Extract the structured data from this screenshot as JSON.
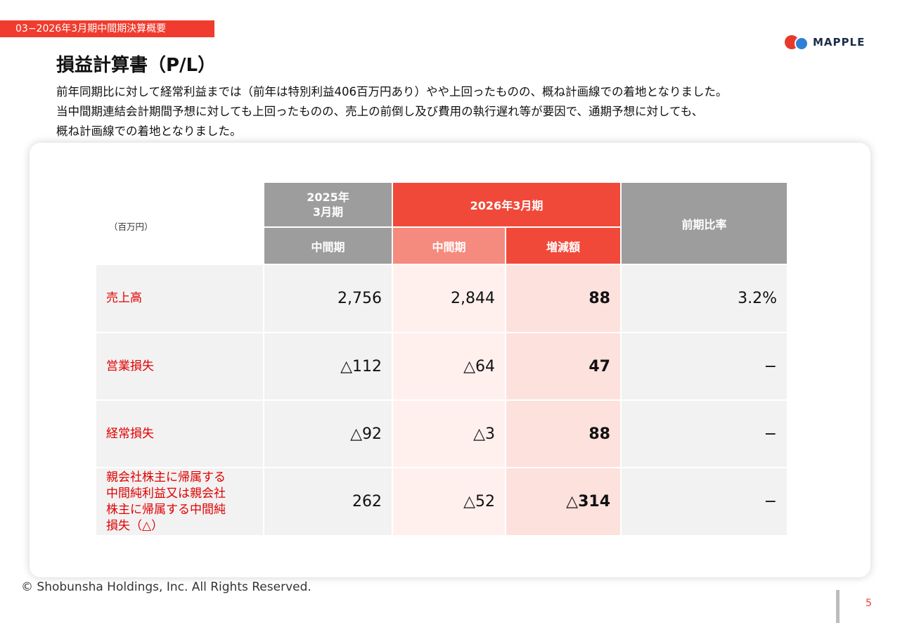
{
  "header": {
    "section_tag": "03−2026年3月期中間期決算概要",
    "logo_text": "MAPPLE",
    "title": "損益計算書（P/L）"
  },
  "description": [
    "前年同期比に対して経常利益までは（前年は特別利益406百万円あり）やや上回ったものの、概ね計画線での着地となりました。",
    "当中間期連結会計期間予想に対しても上回ったものの、売上の前倒し及び費用の執行遅れ等が要因で、通期予想に対しても、",
    "概ね計画線での着地となりました。"
  ],
  "table": {
    "unit": "（百万円）",
    "headers": {
      "prev_year": "2025年\n3月期",
      "prev_year_sub": "中間期",
      "curr_year": "2026年3月期",
      "curr_sub": "中間期",
      "change_sub": "増減額",
      "ratio": "前期比率"
    },
    "rows": [
      {
        "label": "売上高",
        "prev": "2,756",
        "curr": "2,844",
        "change": "88",
        "ratio": "3.2%"
      },
      {
        "label": "営業損失",
        "prev": "△112",
        "curr": "△64",
        "change": "47",
        "ratio": "−"
      },
      {
        "label": "経常損失",
        "prev": "△92",
        "curr": "△3",
        "change": "88",
        "ratio": "−"
      },
      {
        "label": "親会社株主に帰属する中間純利益又は親会社株主に帰属する中間純損失（△）",
        "label_lines": [
          "親会社株主に帰属する",
          "中間純利益又は親会社",
          "株主に帰属する中間純",
          "損失（△）"
        ],
        "prev": "262",
        "curr": "△52",
        "change": "△314",
        "ratio": "−"
      }
    ]
  },
  "footer": {
    "copyright": "© Shobunsha Holdings, Inc. All Rights Reserved.",
    "page_number": "5"
  },
  "colors": {
    "accent": "#f03c2e",
    "header_gray": "#9d9d9d",
    "header_red": "#f0493a",
    "header_pink": "#f58a7e"
  }
}
